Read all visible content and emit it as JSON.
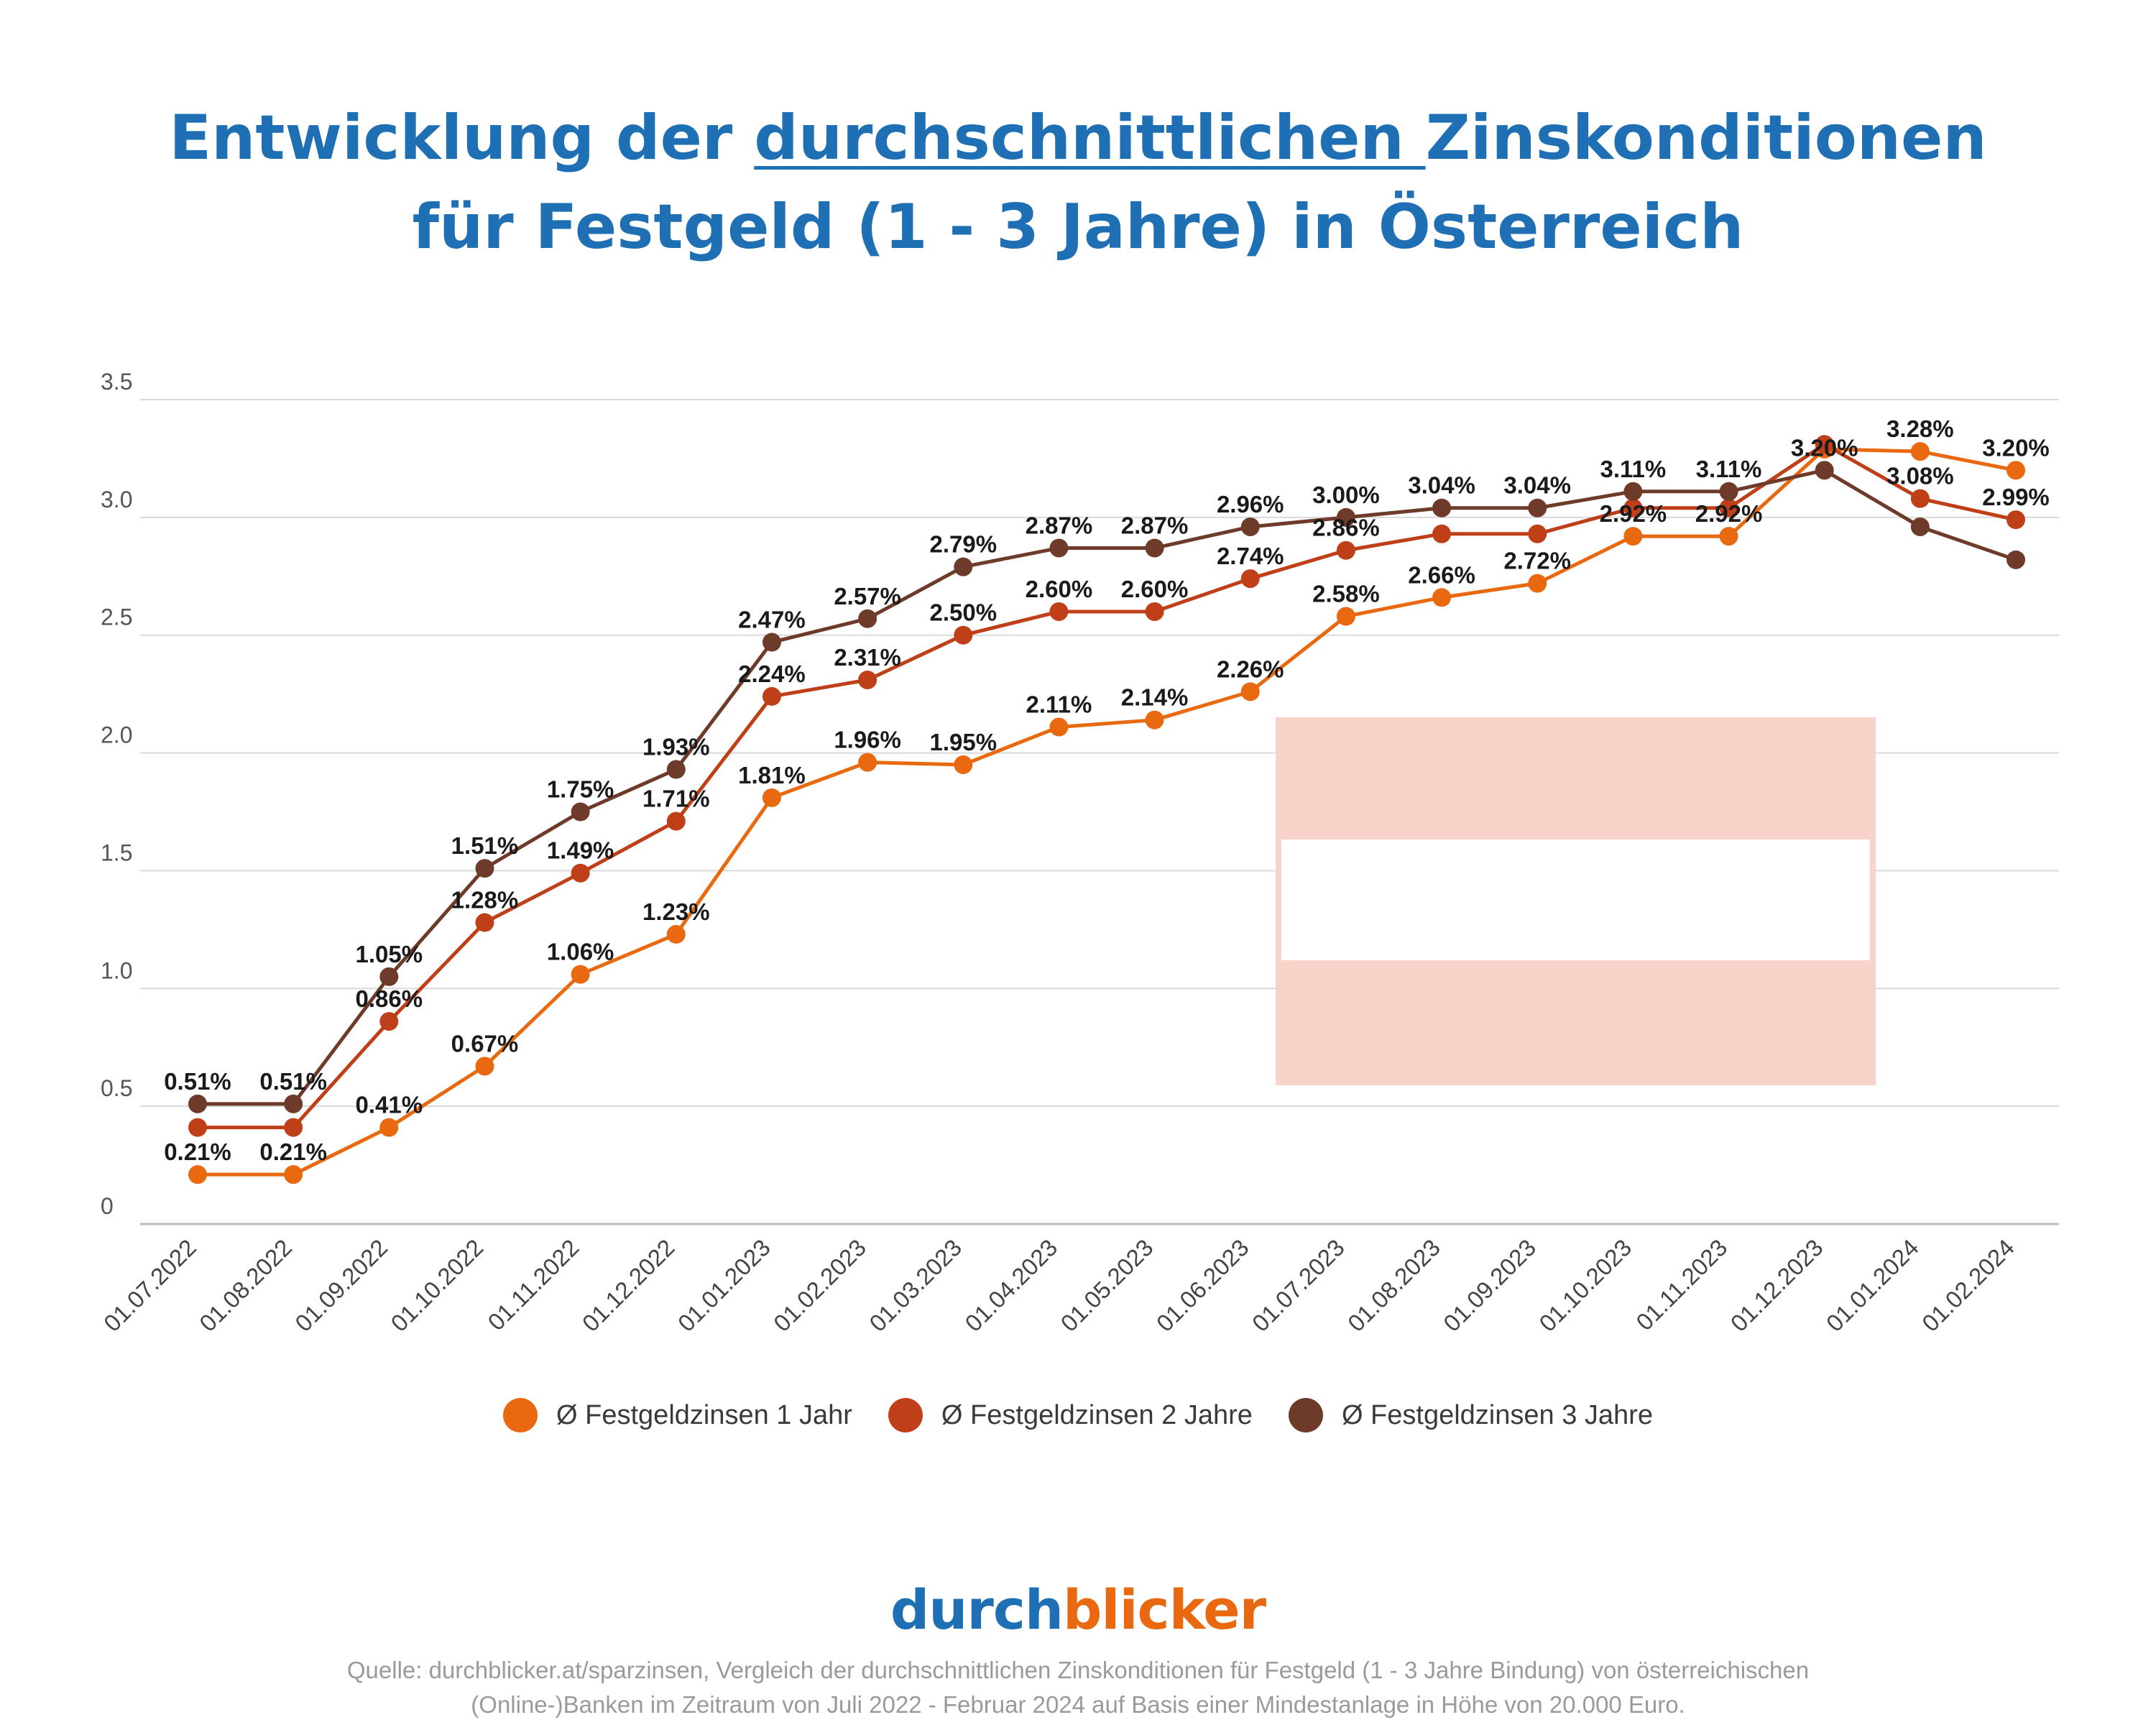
{
  "title": {
    "line1_pre": "Entwicklung der ",
    "line1_u": "durchschnittlichen ",
    "line1_post": "Zinskonditionen",
    "line2": "für Festgeld (1 - 3 Jahre) in Österreich"
  },
  "chart_data": {
    "type": "line",
    "categories": [
      "01.07.2022",
      "01.08.2022",
      "01.09.2022",
      "01.10.2022",
      "01.11.2022",
      "01.12.2022",
      "01.01.2023",
      "01.02.2023",
      "01.03.2023",
      "01.04.2023",
      "01.05.2023",
      "01.06.2023",
      "01.07.2023",
      "01.08.2023",
      "01.09.2023",
      "01.10.2023",
      "01.11.2023",
      "01.12.2023",
      "01.01.2024",
      "01.02.2024"
    ],
    "yticks": [
      "0",
      "0.5",
      "1.0",
      "1.5",
      "2.0",
      "2.5",
      "3.0",
      "3.5"
    ],
    "ylim": [
      0,
      3.5
    ],
    "grid": true,
    "legend_position": "bottom",
    "series": [
      {
        "name": "Ø Festgeldzinsen 1 Jahr",
        "color": "#e8690f",
        "values": [
          0.21,
          0.21,
          0.41,
          0.67,
          1.06,
          1.23,
          1.81,
          1.96,
          1.95,
          2.11,
          2.14,
          2.26,
          2.58,
          2.66,
          2.72,
          2.92,
          2.92,
          3.29,
          3.28,
          3.2
        ],
        "labels": [
          "0.21%",
          "0.21%",
          "0.41%",
          "0.67%",
          "1.06%",
          "1.23%",
          "1.81%",
          "1.96%",
          "1.95%",
          "2.11%",
          "2.14%",
          "2.26%",
          "2.58%",
          "2.66%",
          "2.72%",
          "2.92%",
          "2.92%",
          "",
          "3.28%",
          "3.20%"
        ]
      },
      {
        "name": "Ø Festgeldzinsen 2 Jahre",
        "color": "#bf4018",
        "values": [
          0.41,
          0.41,
          0.86,
          1.28,
          1.49,
          1.71,
          2.24,
          2.31,
          2.5,
          2.6,
          2.6,
          2.74,
          2.86,
          2.93,
          2.93,
          3.04,
          3.04,
          3.31,
          3.08,
          2.99
        ],
        "labels": [
          "",
          "",
          "0.86%",
          "1.28%",
          "1.49%",
          "1.71%",
          "2.24%",
          "2.31%",
          "2.50%",
          "2.60%",
          "2.60%",
          "2.74%",
          "2.86%",
          "",
          "",
          "",
          "",
          "",
          "3.08%",
          "2.99%"
        ]
      },
      {
        "name": "Ø Festgeldzinsen 3 Jahre",
        "color": "#6e3a2a",
        "values": [
          0.51,
          0.51,
          1.05,
          1.51,
          1.75,
          1.93,
          2.47,
          2.57,
          2.79,
          2.87,
          2.87,
          2.96,
          3.0,
          3.04,
          3.04,
          3.11,
          3.11,
          3.2,
          2.96,
          2.82
        ],
        "labels": [
          "0.51%",
          "0.51%",
          "1.05%",
          "1.51%",
          "1.75%",
          "1.93%",
          "2.47%",
          "2.57%",
          "2.79%",
          "2.87%",
          "2.87%",
          "2.96%",
          "3.00%",
          "3.04%",
          "3.04%",
          "3.11%",
          "3.11%",
          "3.20%",
          "",
          ""
        ]
      }
    ]
  },
  "flag": {
    "red": "#f8d3c9",
    "white": "#ffffff"
  },
  "logo": {
    "part1": "durch",
    "part2": "blicker"
  },
  "source": {
    "line1": "Quelle: durchblicker.at/sparzinsen, Vergleich der durchschnittlichen Zinskonditionen für Festgeld (1 - 3 Jahre Bindung) von österreichischen",
    "line2": "(Online-)Banken im Zeitraum von Juli 2022 - Februar 2024 auf Basis einer Mindestanlage in Höhe von 20.000 Euro."
  }
}
